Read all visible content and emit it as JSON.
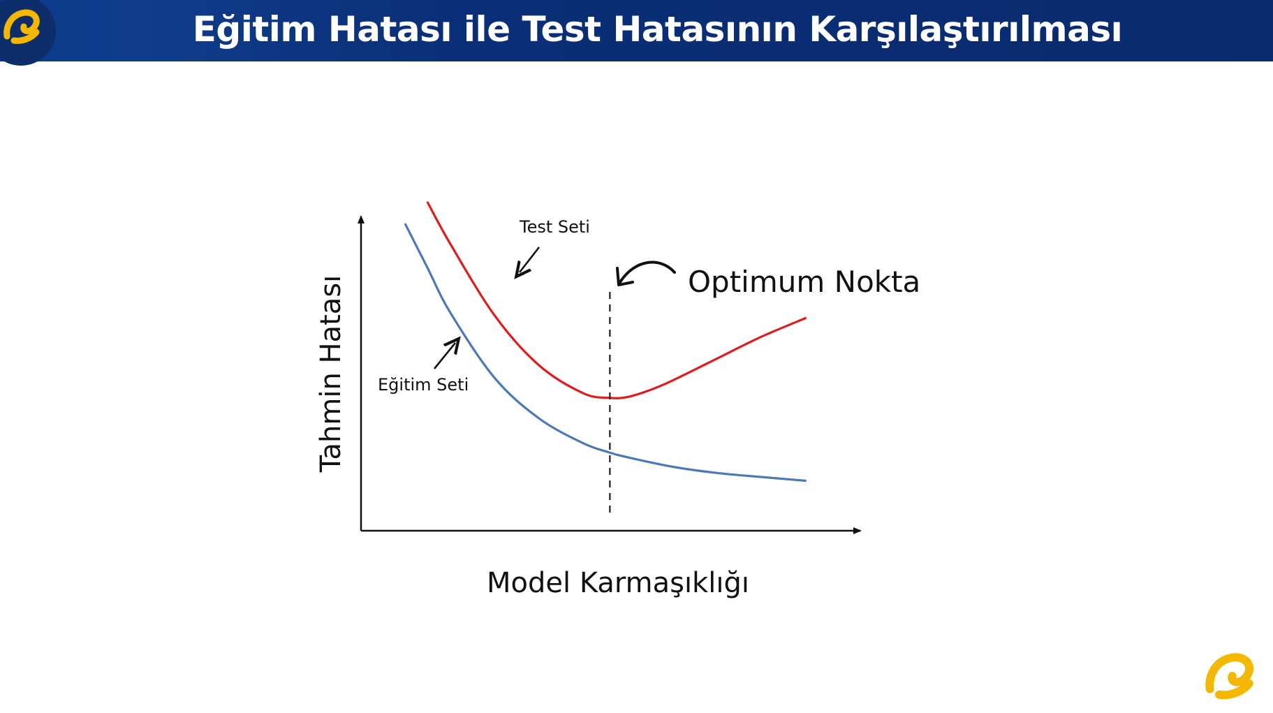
{
  "header": {
    "title": "Eğitim Hatası ile Test Hatasının Karşılaştırılması",
    "background_color": "#0a2f78",
    "logo_icon": "turkcell-logo-icon"
  },
  "colors": {
    "test_line": "#e01b1b",
    "train_line": "#4a78b8",
    "axis": "#111111",
    "logo_yellow": "#f5b800"
  },
  "chart_data": {
    "type": "line",
    "xlabel": "Model Karmaşıklığı",
    "ylabel": "Tahmin Hatası",
    "series": [
      {
        "name": "Test Seti",
        "x": [
          1.5,
          2,
          3,
          4,
          5,
          5.6,
          6,
          6.5,
          7,
          8,
          9,
          10
        ],
        "y": [
          10.5,
          9.2,
          6.9,
          5.3,
          4.4,
          4.25,
          4.28,
          4.5,
          4.8,
          5.5,
          6.2,
          6.8
        ]
      },
      {
        "name": "Eğitim Seti",
        "x": [
          1,
          1.5,
          2,
          3,
          4,
          5,
          5.6,
          6,
          7,
          8,
          9,
          10
        ],
        "y": [
          9.8,
          8.4,
          7.0,
          4.9,
          3.6,
          2.8,
          2.5,
          2.35,
          2.05,
          1.85,
          1.72,
          1.6
        ]
      }
    ],
    "optimum_x": 5.6,
    "annotations": {
      "test": "Test Seti",
      "train": "Eğitim Seti",
      "optimum": "Optimum Nokta"
    },
    "xlim": [
      0,
      11
    ],
    "ylim": [
      0,
      10.5
    ],
    "ticks": "none",
    "grid": false,
    "legend": "none"
  }
}
